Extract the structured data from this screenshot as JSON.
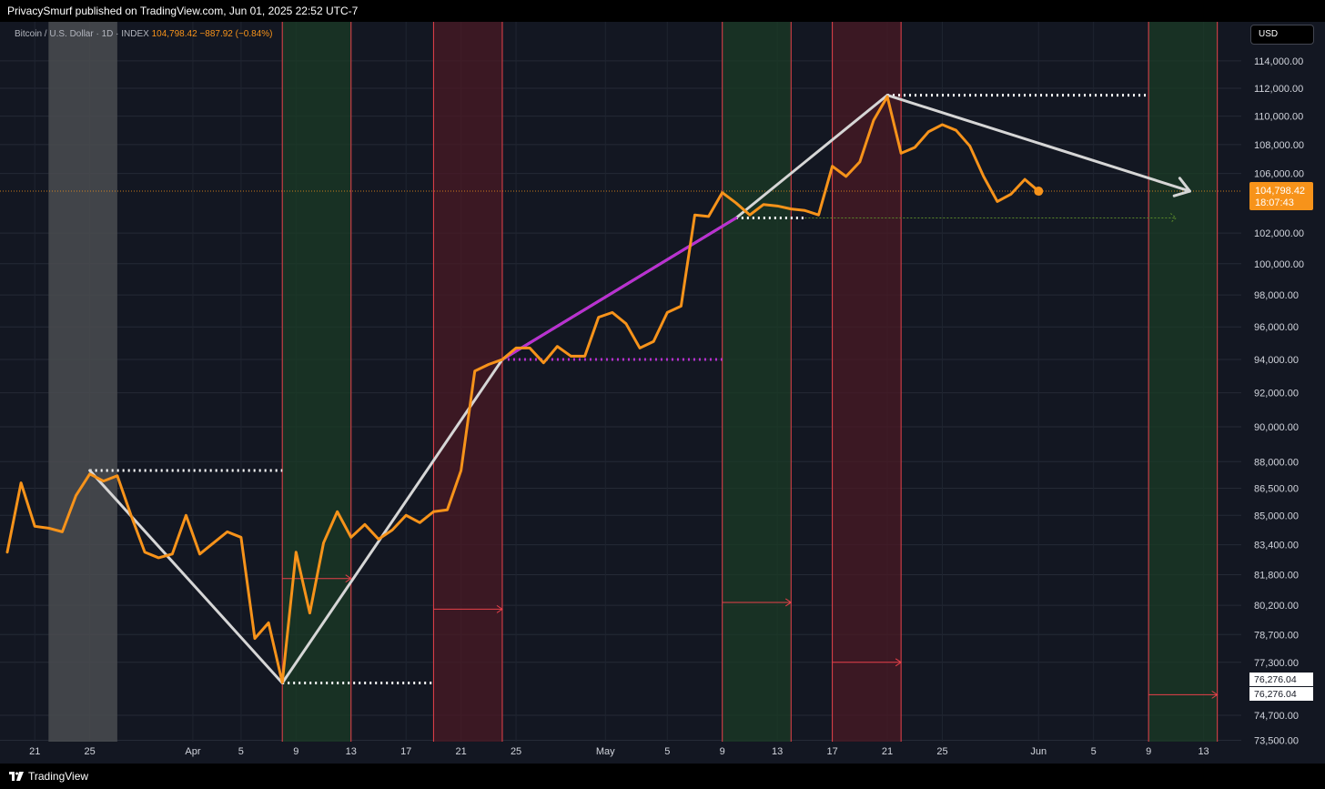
{
  "header": {
    "published_text": "PrivacySmurf published on TradingView.com, Jun 01, 2025 22:52 UTC-7"
  },
  "footer": {
    "brand": "TradingView"
  },
  "legend": {
    "symbol": "Bitcoin / U.S. Dollar · 1D · INDEX",
    "price": "104,798.42",
    "change": "−887.92 (−0.84%)"
  },
  "currency_button": {
    "label": "USD"
  },
  "price_tags": {
    "last_price": "104,798.42",
    "countdown": "18:07:43",
    "low_1": "76,276.04",
    "low_2": "76,276.04"
  },
  "colors": {
    "background": "#131722",
    "price_line": "#f7931a",
    "green_zone": "#1b3b26",
    "red_zone": "#4a1a24",
    "gray_zone": "#4a4c50",
    "vline": "#e8414a",
    "projection": "#d6d6d6",
    "magenta": "#b92fd1",
    "hline_current": "#f7931a",
    "dotted_green": "#5a8a2a"
  },
  "chart_data": {
    "type": "line",
    "series": [
      {
        "values": [
          [
            0,
            83000
          ],
          [
            1,
            86800
          ],
          [
            2,
            84400
          ],
          [
            3,
            84300
          ],
          [
            4,
            84100
          ],
          [
            5,
            86100
          ],
          [
            6,
            87300
          ],
          [
            7,
            86900
          ],
          [
            8,
            87200
          ],
          [
            9,
            85000
          ],
          [
            10,
            83000
          ],
          [
            11,
            82700
          ],
          [
            12,
            82900
          ],
          [
            13,
            85000
          ],
          [
            14,
            82900
          ],
          [
            15,
            83500
          ],
          [
            16,
            84100
          ],
          [
            17,
            83800
          ],
          [
            18,
            78500
          ],
          [
            19,
            79300
          ],
          [
            20,
            76300
          ],
          [
            21,
            83000
          ],
          [
            22,
            79800
          ],
          [
            23,
            83500
          ],
          [
            24,
            85200
          ],
          [
            25,
            83800
          ],
          [
            26,
            84500
          ],
          [
            27,
            83700
          ],
          [
            28,
            84200
          ],
          [
            29,
            85000
          ],
          [
            30,
            84600
          ],
          [
            31,
            85200
          ],
          [
            32,
            85300
          ],
          [
            33,
            87500
          ],
          [
            34,
            93300
          ],
          [
            35,
            93700
          ],
          [
            36,
            94000
          ],
          [
            37,
            94700
          ],
          [
            38,
            94700
          ],
          [
            39,
            93800
          ],
          [
            40,
            94800
          ],
          [
            41,
            94200
          ],
          [
            42,
            94200
          ],
          [
            43,
            96600
          ],
          [
            44,
            96900
          ],
          [
            45,
            96200
          ],
          [
            46,
            94700
          ],
          [
            47,
            95100
          ],
          [
            48,
            96900
          ],
          [
            49,
            97300
          ],
          [
            50,
            103200
          ],
          [
            51,
            103100
          ],
          [
            52,
            104700
          ],
          [
            53,
            104000
          ],
          [
            54,
            103200
          ],
          [
            55,
            103900
          ],
          [
            56,
            103800
          ],
          [
            57,
            103600
          ],
          [
            58,
            103500
          ],
          [
            59,
            103200
          ],
          [
            60,
            106500
          ],
          [
            61,
            105800
          ],
          [
            62,
            106800
          ],
          [
            63,
            109700
          ],
          [
            64,
            111400
          ],
          [
            65,
            107400
          ],
          [
            66,
            107800
          ],
          [
            67,
            108900
          ],
          [
            68,
            109400
          ],
          [
            69,
            109000
          ],
          [
            70,
            107900
          ],
          [
            71,
            105800
          ],
          [
            72,
            104100
          ],
          [
            73,
            104600
          ],
          [
            74,
            105600
          ],
          [
            75,
            104798.42
          ]
        ]
      }
    ],
    "x_tick_labels": [
      "21",
      "25",
      "Apr",
      "5",
      "9",
      "13",
      "17",
      "21",
      "25",
      "May",
      "5",
      "9",
      "13",
      "17",
      "21",
      "25",
      "Jun",
      "5",
      "9",
      "13"
    ],
    "y_tick_labels": [
      "114,000.00",
      "112,000.00",
      "110,000.00",
      "108,000.00",
      "106,000.00",
      "102,000.00",
      "100,000.00",
      "98,000.00",
      "96,000.00",
      "94,000.00",
      "92,000.00",
      "90,000.00",
      "88,000.00",
      "86,500.00",
      "85,000.00",
      "83,400.00",
      "81,800.00",
      "80,200.00",
      "78,700.00",
      "77,300.00",
      "74,700.00",
      "73,500.00"
    ],
    "y_tick_values": [
      114000,
      112000,
      110000,
      108000,
      106000,
      102000,
      100000,
      98000,
      96000,
      94000,
      92000,
      90000,
      88000,
      86500,
      85000,
      83400,
      81800,
      80200,
      78700,
      77300,
      74700,
      73500
    ],
    "ylim": [
      73500,
      114000
    ],
    "y_scale": "log",
    "zones": [
      {
        "color": "gray",
        "from": 3,
        "to": 8
      },
      {
        "color": "green",
        "from": 20,
        "to": 25
      },
      {
        "color": "red",
        "from": 31,
        "to": 36
      },
      {
        "color": "green",
        "from": 52,
        "to": 57
      },
      {
        "color": "red",
        "from": 60,
        "to": 65
      },
      {
        "color": "green",
        "from": 83,
        "to": 88
      }
    ],
    "vertical_lines": [
      20,
      25,
      31,
      36,
      52,
      57,
      60,
      65,
      83,
      88
    ],
    "zone_arrows": [
      {
        "from": 20,
        "to": 25,
        "y": 81600
      },
      {
        "from": 31,
        "to": 36,
        "y": 80000
      },
      {
        "from": 52,
        "to": 57,
        "y": 80350
      },
      {
        "from": 60,
        "to": 65,
        "y": 77300
      },
      {
        "from": 83,
        "to": 88,
        "y": 75700
      }
    ],
    "projection_lines": [
      {
        "color": "projection",
        "points": [
          [
            6,
            87500
          ],
          [
            20,
            76276.04
          ],
          [
            36,
            94000
          ],
          [
            53,
            103000
          ],
          [
            64,
            111500
          ]
        ]
      },
      {
        "color": "magenta",
        "points": [
          [
            36,
            94000
          ],
          [
            53,
            103000
          ]
        ]
      },
      {
        "color": "projection",
        "points": [
          [
            64,
            111500
          ],
          [
            86,
            104800
          ]
        ],
        "arrow": true
      }
    ],
    "dotted_lines": [
      {
        "color": "white",
        "from": 6,
        "to": 20,
        "y": 87500
      },
      {
        "color": "white",
        "from": 20,
        "to": 31,
        "y": 76276.04
      },
      {
        "color": "magenta",
        "from": 36,
        "to": 52,
        "y": 94000
      },
      {
        "color": "white",
        "from": 53,
        "to": 58,
        "y": 103000
      },
      {
        "color": "green",
        "from": 58,
        "to": 85,
        "y": 103000,
        "arrow": true
      },
      {
        "color": "white",
        "from": 64,
        "to": 83,
        "y": 111500
      }
    ],
    "current_price": 104798.42
  }
}
